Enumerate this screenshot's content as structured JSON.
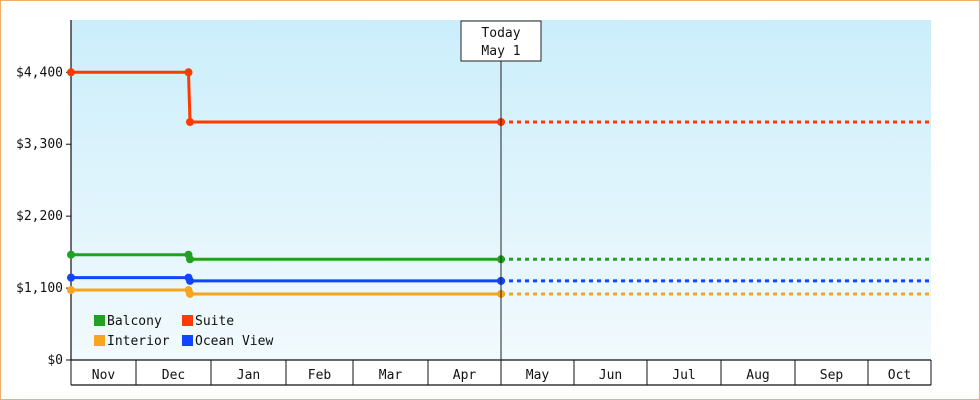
{
  "chart_data": {
    "type": "line",
    "x_months": [
      "Nov",
      "Dec",
      "Jan",
      "Feb",
      "Mar",
      "Apr",
      "May",
      "Jun",
      "Jul",
      "Aug",
      "Sep",
      "Oct"
    ],
    "y_ticks": [
      "$0",
      "$1,100",
      "$2,200",
      "$3,300",
      "$4,400"
    ],
    "ylim": [
      0,
      5200
    ],
    "today": {
      "line1": "Today",
      "line2": "May 1",
      "month_index": 6
    },
    "series": [
      {
        "name": "Balcony",
        "color": "#22a022",
        "points": [
          {
            "m": 0,
            "v": 1610
          },
          {
            "m": 1.7,
            "v": 1610
          },
          {
            "m": 1.72,
            "v": 1540
          },
          {
            "m": 6,
            "v": 1540
          }
        ],
        "forecast_to": 12,
        "forecast_value": 1540
      },
      {
        "name": "Suite",
        "color": "#ff3a00",
        "points": [
          {
            "m": 0,
            "v": 4400
          },
          {
            "m": 1.7,
            "v": 4400
          },
          {
            "m": 1.72,
            "v": 3640
          },
          {
            "m": 6,
            "v": 3640
          }
        ],
        "forecast_to": 12,
        "forecast_value": 3640
      },
      {
        "name": "Interior",
        "color": "#f7a51c",
        "points": [
          {
            "m": 0,
            "v": 1070
          },
          {
            "m": 1.7,
            "v": 1070
          },
          {
            "m": 1.72,
            "v": 1010
          },
          {
            "m": 6,
            "v": 1010
          }
        ],
        "forecast_to": 12,
        "forecast_value": 1010
      },
      {
        "name": "Ocean View",
        "color": "#1144ff",
        "points": [
          {
            "m": 0,
            "v": 1260
          },
          {
            "m": 1.7,
            "v": 1260
          },
          {
            "m": 1.72,
            "v": 1210
          },
          {
            "m": 6,
            "v": 1210
          }
        ],
        "forecast_to": 12,
        "forecast_value": 1210
      }
    ],
    "legend": {
      "placement": "bottom-left",
      "columns": 2
    },
    "grid": false
  }
}
